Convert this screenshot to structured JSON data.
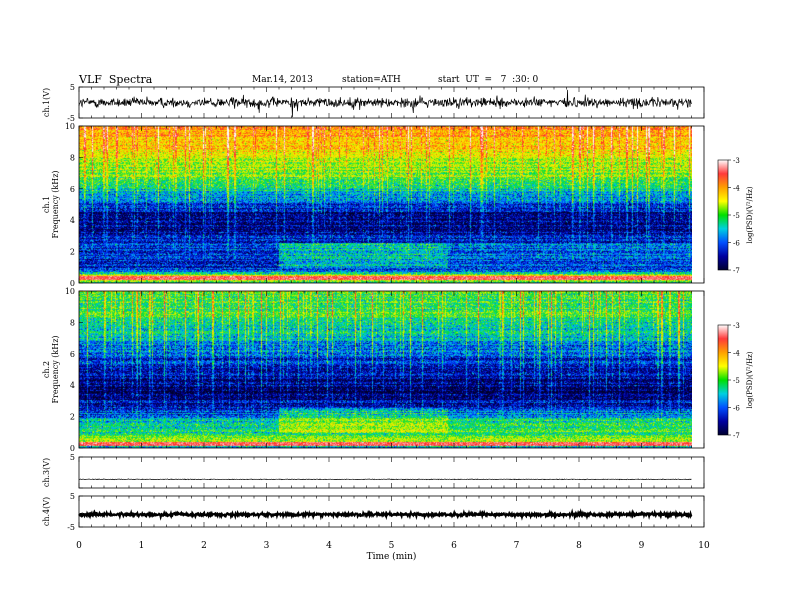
{
  "header": {
    "title": "VLF  Spectra",
    "date": "Mar.14, 2013",
    "station": "station=ATH",
    "start": "start  UT  =   7  :30: 0"
  },
  "colorbar": {
    "label": "log(PSD)(V²/Hz)",
    "ticks": [
      "-3",
      "-4",
      "-5",
      "-6",
      "-7"
    ],
    "colors": [
      "#ffffff",
      "#ff3a3a",
      "#ffa000",
      "#ffff00",
      "#00e000",
      "#00d0e0",
      "#0050ff",
      "#0000a0",
      "#000030"
    ]
  },
  "chart_data": {
    "type": "heatmap",
    "x_axis": {
      "label": "Time  (min)",
      "range": [
        0,
        10
      ],
      "ticks": [
        "0",
        "1",
        "2",
        "3",
        "4",
        "5",
        "6",
        "7",
        "8",
        "9",
        "10"
      ]
    },
    "data_end_min": 9.8,
    "panels": [
      {
        "id": "ch1_wave",
        "kind": "waveform",
        "ylabel": "ch.1(V)",
        "yticks": [
          "5",
          "-5"
        ],
        "ylim": [
          -5,
          5
        ],
        "level_V": 0.0,
        "noise_V": 0.8,
        "spikes": true
      },
      {
        "id": "ch1_spec",
        "kind": "spectrogram",
        "ylabel_top": "ch.1",
        "ylabel": "Frequency (kHz)",
        "yticks": [
          "0",
          "2",
          "4",
          "6",
          "8",
          "10"
        ],
        "ylim": [
          0,
          10
        ],
        "profile_kHz": [
          0,
          0.4,
          0.8,
          1.5,
          2.5,
          3.5,
          4.5,
          5.5,
          6.5,
          7.5,
          8.5,
          9.5,
          10
        ],
        "profile_logPSD": [
          -5.8,
          -4.2,
          -6.3,
          -6.4,
          -6.3,
          -6.7,
          -6.6,
          -6.0,
          -5.3,
          -5.0,
          -4.6,
          -4.3,
          -4.2
        ],
        "bright_line_kHz": [
          0.35
        ],
        "level_shift_min": [
          3.2,
          5.9
        ]
      },
      {
        "id": "ch2_spec",
        "kind": "spectrogram",
        "ylabel_top": "ch.2",
        "ylabel": "Frequency (kHz)",
        "yticks": [
          "0",
          "2",
          "4",
          "6",
          "8",
          "10"
        ],
        "ylim": [
          0,
          10
        ],
        "profile_kHz": [
          0,
          0.4,
          0.8,
          1.5,
          2.5,
          3.5,
          4.5,
          5.5,
          6.5,
          7.5,
          8.5,
          9.5,
          10
        ],
        "profile_logPSD": [
          -6.2,
          -4.9,
          -5.4,
          -5.6,
          -6.4,
          -6.8,
          -6.6,
          -6.4,
          -6.0,
          -5.6,
          -5.4,
          -5.3,
          -5.3
        ],
        "bright_line_kHz": [
          0.3
        ],
        "level_shift_min": [
          3.2,
          5.9
        ]
      },
      {
        "id": "ch3_wave",
        "kind": "waveform",
        "ylabel": "ch.3(V)",
        "yticks": [
          "5",
          ""
        ],
        "ylim": [
          -5,
          5
        ],
        "level_V": -2.2,
        "noise_V": 0.05,
        "spikes": false
      },
      {
        "id": "ch4_wave",
        "kind": "waveform",
        "ylabel": "ch.4(V)",
        "yticks": [
          "5",
          "-5"
        ],
        "ylim": [
          -5,
          5
        ],
        "level_V": -1.0,
        "noise_V": 0.25,
        "spikes": false
      }
    ]
  }
}
